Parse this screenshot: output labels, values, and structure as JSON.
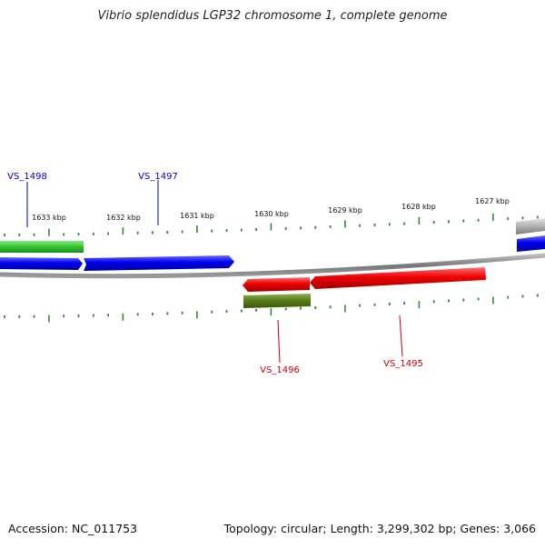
{
  "title": "Vibrio splendidus LGP32 chromosome 1, complete genome",
  "footer": {
    "accession": "Accession: NC_011753",
    "summary": "Topology: circular; Length: 3,299,302 bp; Genes: 3,066"
  },
  "colors": {
    "background": "#ffffff",
    "backbone": "#888888",
    "forward_cds": "#0000ee",
    "reverse_cds": "#ee0000",
    "forward_gene": "#33cc33",
    "reverse_gene": "#5a7f1a",
    "other_feature": "#aaaaaa",
    "tick": "#2e8b2e",
    "label_forward": "#0000cc",
    "label_reverse": "#cc0000"
  },
  "ruler": {
    "outer_labels": [
      "1633 kbp",
      "1632 kbp",
      "1631 kbp",
      "1630 kbp",
      "1629 kbp",
      "1628 kbp",
      "1627 kbp"
    ]
  },
  "genes": [
    {
      "name": "VS_1498",
      "strand": "forward"
    },
    {
      "name": "VS_1497",
      "strand": "forward"
    },
    {
      "name": "VS_1496",
      "strand": "reverse"
    },
    {
      "name": "VS_1495",
      "strand": "reverse"
    }
  ]
}
